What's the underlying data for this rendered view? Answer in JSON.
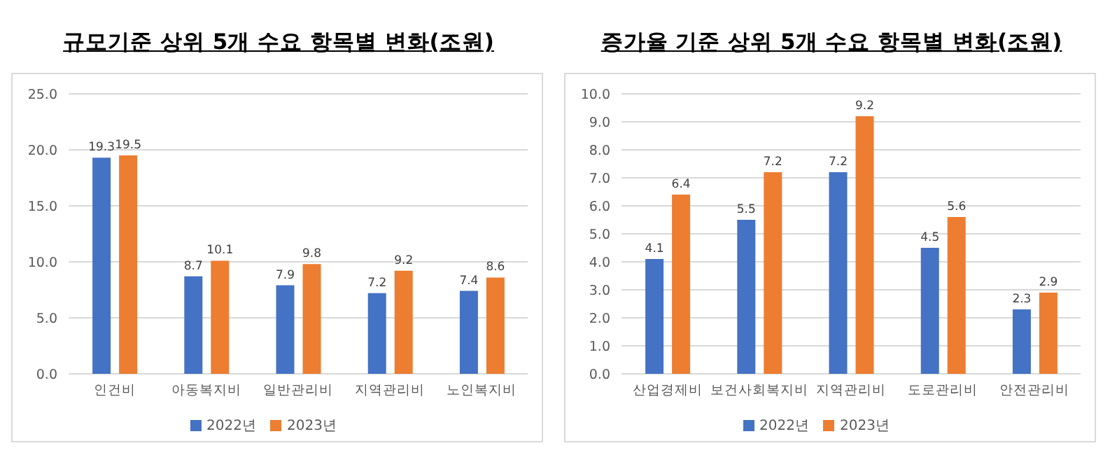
{
  "chart_data": [
    {
      "type": "bar",
      "title": "규모기준 상위 5개 수요 항목별 변화(조원)",
      "categories": [
        "인건비",
        "아동복지비",
        "일반관리비",
        "지역관리비",
        "노인복지비"
      ],
      "series": [
        {
          "name": "2022년",
          "color": "#4472c4",
          "values": [
            19.3,
            8.7,
            7.9,
            7.2,
            7.4
          ]
        },
        {
          "name": "2023년",
          "color": "#ed7d31",
          "values": [
            19.5,
            10.1,
            9.8,
            9.2,
            8.6
          ]
        }
      ],
      "ylim": [
        0,
        25
      ],
      "yticks": [
        {
          "value": 0,
          "label": "0.0"
        },
        {
          "value": 5,
          "label": "5.0"
        },
        {
          "value": 10,
          "label": "10.0"
        },
        {
          "value": 15,
          "label": "15.0"
        },
        {
          "value": 20,
          "label": "20.0"
        },
        {
          "value": 25,
          "label": "25.0"
        }
      ],
      "grid": "y",
      "legend": "bottom",
      "data_labels": true
    },
    {
      "type": "bar",
      "title": "증가율 기준 상위 5개 수요 항목별 변화(조원)",
      "categories": [
        "산업경제비",
        "보건사회복지비",
        "지역관리비",
        "도로관리비",
        "안전관리비"
      ],
      "series": [
        {
          "name": "2022년",
          "color": "#4472c4",
          "values": [
            4.1,
            5.5,
            7.2,
            4.5,
            2.3
          ]
        },
        {
          "name": "2023년",
          "color": "#ed7d31",
          "values": [
            6.4,
            7.2,
            9.2,
            5.6,
            2.9
          ]
        }
      ],
      "ylim": [
        0,
        10
      ],
      "yticks": [
        {
          "value": 0,
          "label": "0.0"
        },
        {
          "value": 1,
          "label": "1.0"
        },
        {
          "value": 2,
          "label": "2.0"
        },
        {
          "value": 3,
          "label": "3.0"
        },
        {
          "value": 4,
          "label": "4.0"
        },
        {
          "value": 5,
          "label": "5.0"
        },
        {
          "value": 6,
          "label": "6.0"
        },
        {
          "value": 7,
          "label": "7.0"
        },
        {
          "value": 8,
          "label": "8.0"
        },
        {
          "value": 9,
          "label": "9.0"
        },
        {
          "value": 10,
          "label": "10.0"
        }
      ],
      "grid": "y",
      "legend": "bottom",
      "data_labels": true
    }
  ]
}
